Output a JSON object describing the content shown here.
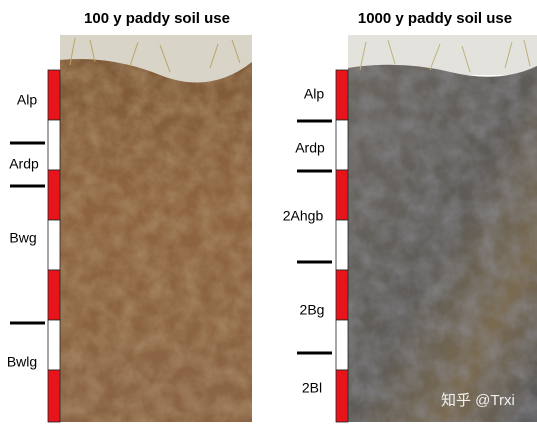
{
  "panels": [
    {
      "title": "100 y paddy soil use",
      "horizons": [
        "Alp",
        "Ardp",
        "Bwg",
        "Bwlg"
      ]
    },
    {
      "title": "1000 y paddy soil use",
      "horizons": [
        "Alp",
        "Ardp",
        "2Ahgb",
        "2Bg",
        "2Bl"
      ]
    }
  ],
  "watermark": "知乎 @Trxi"
}
